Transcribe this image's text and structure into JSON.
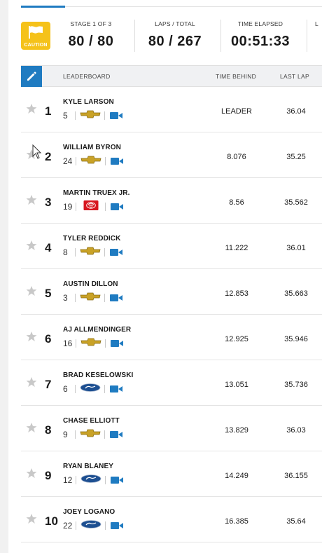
{
  "status": {
    "flag_label": "CAUTION",
    "flag_color": "#f5c21a"
  },
  "stats": [
    {
      "label": "STAGE 1 OF 3",
      "value": "80 / 80"
    },
    {
      "label": "LAPS / TOTAL",
      "value": "80 / 267"
    },
    {
      "label": "TIME ELAPSED",
      "value": "00:51:33"
    },
    {
      "label": "L",
      "value": ""
    }
  ],
  "table": {
    "headers": {
      "leaderboard": "LEADERBOARD",
      "time_behind": "TIME BEHIND",
      "last_lap": "LAST LAP"
    },
    "rows": [
      {
        "pos": "1",
        "name": "KYLE LARSON",
        "car": "5",
        "make": "chevrolet-logo",
        "time_behind": "LEADER",
        "last_lap": "36.04"
      },
      {
        "pos": "2",
        "name": "WILLIAM BYRON",
        "car": "24",
        "make": "chevrolet-logo",
        "time_behind": "8.076",
        "last_lap": "35.25"
      },
      {
        "pos": "3",
        "name": "MARTIN TRUEX JR.",
        "car": "19",
        "make": "toyota-logo",
        "time_behind": "8.56",
        "last_lap": "35.562"
      },
      {
        "pos": "4",
        "name": "TYLER REDDICK",
        "car": "8",
        "make": "chevrolet-logo",
        "time_behind": "11.222",
        "last_lap": "36.01"
      },
      {
        "pos": "5",
        "name": "AUSTIN DILLON",
        "car": "3",
        "make": "chevrolet-logo",
        "time_behind": "12.853",
        "last_lap": "35.663"
      },
      {
        "pos": "6",
        "name": "AJ ALLMENDINGER",
        "car": "16",
        "make": "chevrolet-logo",
        "time_behind": "12.925",
        "last_lap": "35.946"
      },
      {
        "pos": "7",
        "name": "BRAD KESELOWSKI",
        "car": "6",
        "make": "ford-logo",
        "time_behind": "13.051",
        "last_lap": "35.736"
      },
      {
        "pos": "8",
        "name": "CHASE ELLIOTT",
        "car": "9",
        "make": "chevrolet-logo",
        "time_behind": "13.829",
        "last_lap": "36.03"
      },
      {
        "pos": "9",
        "name": "RYAN BLANEY",
        "car": "12",
        "make": "ford-logo",
        "time_behind": "14.249",
        "last_lap": "36.155"
      },
      {
        "pos": "10",
        "name": "JOEY LOGANO",
        "car": "22",
        "make": "ford-logo",
        "time_behind": "16.385",
        "last_lap": "35.64"
      }
    ]
  },
  "colors": {
    "accent": "#1f7bc1",
    "caution": "#f5c21a",
    "toyota": "#d7161f",
    "chevy_gold": "#c9a227",
    "ford_blue": "#1d4f91"
  }
}
